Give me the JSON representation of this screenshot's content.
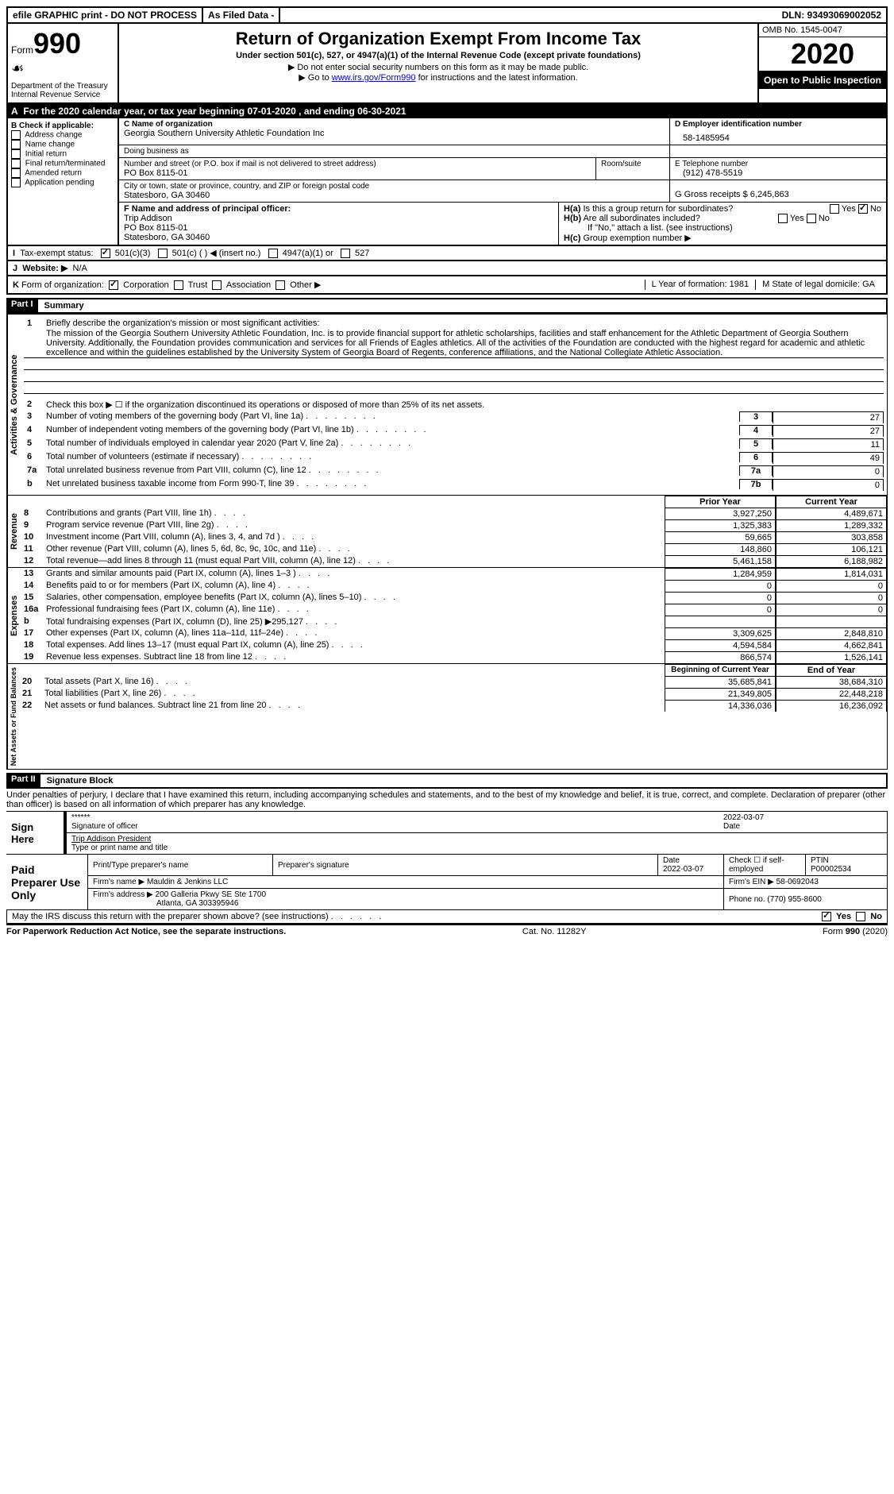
{
  "topbar": {
    "efile": "efile GRAPHIC print - DO NOT PROCESS",
    "asfiled": "As Filed Data -",
    "dln": "DLN: 93493069002052"
  },
  "header": {
    "form": "Form",
    "num": "990",
    "dept": "Department of the Treasury\nInternal Revenue Service",
    "title": "Return of Organization Exempt From Income Tax",
    "sub1": "Under section 501(c), 527, or 4947(a)(1) of the Internal Revenue Code (except private foundations)",
    "sub2": "▶ Do not enter social security numbers on this form as it may be made public.",
    "sub3a": "▶ Go to ",
    "sub3link": "www.irs.gov/Form990",
    "sub3b": " for instructions and the latest information.",
    "omb": "OMB No. 1545-0047",
    "year": "2020",
    "open": "Open to Public Inspection"
  },
  "A": {
    "text": "For the 2020 calendar year, or tax year beginning 07-01-2020   , and ending 06-30-2021"
  },
  "B": {
    "hdr": "B Check if applicable:",
    "items": [
      "Address change",
      "Name change",
      "Initial return",
      "Final return/terminated",
      "Amended return",
      "Application pending"
    ]
  },
  "C": {
    "label": "C Name of organization",
    "name": "Georgia Southern University Athletic Foundation Inc",
    "dba": "Doing business as",
    "street_label": "Number and street (or P.O. box if mail is not delivered to street address)",
    "room": "Room/suite",
    "street": "PO Box 8115-01",
    "city_label": "City or town, state or province, country, and ZIP or foreign postal code",
    "city": "Statesboro, GA  30460"
  },
  "D": {
    "label": "D Employer identification number",
    "val": "58-1485954"
  },
  "E": {
    "label": "E Telephone number",
    "val": "(912) 478-5519"
  },
  "G": {
    "label": "G Gross receipts $",
    "val": "6,245,863"
  },
  "F": {
    "label": "F  Name and address of principal officer:",
    "name": "Trip Addison",
    "po": "PO Box 8115-01",
    "city": "Statesboro, GA  30460"
  },
  "H": {
    "a": "Is this a group return for subordinates?",
    "b": "Are all subordinates included?",
    "b2": "If \"No,\" attach a list. (see instructions)",
    "c": "Group exemption number ▶",
    "yes": "Yes",
    "no": "No"
  },
  "I": {
    "label": "Tax-exempt status:",
    "opts": [
      "501(c)(3)",
      "501(c) (  ) ◀ (insert no.)",
      "4947(a)(1) or",
      "527"
    ]
  },
  "J": {
    "label": "Website: ▶",
    "val": "N/A"
  },
  "K": {
    "label": "Form of organization:",
    "opts": [
      "Corporation",
      "Trust",
      "Association",
      "Other ▶"
    ]
  },
  "L": {
    "label": "L Year of formation:",
    "val": "1981"
  },
  "M": {
    "label": "M State of legal domicile:",
    "val": "GA"
  },
  "part1": {
    "label": "Part I",
    "title": "Summary"
  },
  "summary": {
    "l1": "Briefly describe the organization's mission or most significant activities:",
    "mission": "The mission of the Georgia Southern University Athletic Foundation, Inc. is to provide financial support for athletic scholarships, facilities and staff enhancement for the Athletic Department of Georgia Southern University. Additionally, the Foundation provides communication and services for all Friends of Eagles athletics. All of the activities of the Foundation are conducted with the highest regard for academic and athletic excellence and within the guidelines established by the University System of Georgia Board of Regents, conference affiliations, and the National Collegiate Athletic Association.",
    "l2": "Check this box ▶ ☐ if the organization discontinued its operations or disposed of more than 25% of its net assets.",
    "rows": [
      {
        "n": "3",
        "t": "Number of voting members of the governing body (Part VI, line 1a)",
        "box": "3",
        "v": "27"
      },
      {
        "n": "4",
        "t": "Number of independent voting members of the governing body (Part VI, line 1b)",
        "box": "4",
        "v": "27"
      },
      {
        "n": "5",
        "t": "Total number of individuals employed in calendar year 2020 (Part V, line 2a)",
        "box": "5",
        "v": "11"
      },
      {
        "n": "6",
        "t": "Total number of volunteers (estimate if necessary)",
        "box": "6",
        "v": "49"
      },
      {
        "n": "7a",
        "t": "Total unrelated business revenue from Part VIII, column (C), line 12",
        "box": "7a",
        "v": "0"
      },
      {
        "n": "b",
        "t": "Net unrelated business taxable income from Form 990-T, line 39",
        "box": "7b",
        "v": "0"
      }
    ]
  },
  "cols": {
    "prior": "Prior Year",
    "current": "Current Year",
    "boy": "Beginning of Current Year",
    "eoy": "End of Year"
  },
  "revenue": [
    {
      "n": "8",
      "t": "Contributions and grants (Part VIII, line 1h)",
      "p": "3,927,250",
      "c": "4,489,671"
    },
    {
      "n": "9",
      "t": "Program service revenue (Part VIII, line 2g)",
      "p": "1,325,383",
      "c": "1,289,332"
    },
    {
      "n": "10",
      "t": "Investment income (Part VIII, column (A), lines 3, 4, and 7d )",
      "p": "59,665",
      "c": "303,858"
    },
    {
      "n": "11",
      "t": "Other revenue (Part VIII, column (A), lines 5, 6d, 8c, 9c, 10c, and 11e)",
      "p": "148,860",
      "c": "106,121"
    },
    {
      "n": "12",
      "t": "Total revenue—add lines 8 through 11 (must equal Part VIII, column (A), line 12)",
      "p": "5,461,158",
      "c": "6,188,982"
    }
  ],
  "expenses": [
    {
      "n": "13",
      "t": "Grants and similar amounts paid (Part IX, column (A), lines 1–3 )",
      "p": "1,284,959",
      "c": "1,814,031"
    },
    {
      "n": "14",
      "t": "Benefits paid to or for members (Part IX, column (A), line 4)",
      "p": "0",
      "c": "0"
    },
    {
      "n": "15",
      "t": "Salaries, other compensation, employee benefits (Part IX, column (A), lines 5–10)",
      "p": "0",
      "c": "0"
    },
    {
      "n": "16a",
      "t": "Professional fundraising fees (Part IX, column (A), line 11e)",
      "p": "0",
      "c": "0"
    },
    {
      "n": "b",
      "t": "Total fundraising expenses (Part IX, column (D), line 25) ▶295,127",
      "p": "",
      "c": ""
    },
    {
      "n": "17",
      "t": "Other expenses (Part IX, column (A), lines 11a–11d, 11f–24e)",
      "p": "3,309,625",
      "c": "2,848,810"
    },
    {
      "n": "18",
      "t": "Total expenses. Add lines 13–17 (must equal Part IX, column (A), line 25)",
      "p": "4,594,584",
      "c": "4,662,841"
    },
    {
      "n": "19",
      "t": "Revenue less expenses. Subtract line 18 from line 12",
      "p": "866,574",
      "c": "1,526,141"
    }
  ],
  "netassets": [
    {
      "n": "20",
      "t": "Total assets (Part X, line 16)",
      "p": "35,685,841",
      "c": "38,684,310"
    },
    {
      "n": "21",
      "t": "Total liabilities (Part X, line 26)",
      "p": "21,349,805",
      "c": "22,448,218"
    },
    {
      "n": "22",
      "t": "Net assets or fund balances. Subtract line 21 from line 20",
      "p": "14,336,036",
      "c": "16,236,092"
    }
  ],
  "labels": {
    "actgov": "Activities & Governance",
    "rev": "Revenue",
    "exp": "Expenses",
    "net": "Net Assets or Fund Balances"
  },
  "part2": {
    "label": "Part II",
    "title": "Signature Block",
    "perjury": "Under penalties of perjury, I declare that I have examined this return, including accompanying schedules and statements, and to the best of my knowledge and belief, it is true, correct, and complete. Declaration of preparer (other than officer) is based on all information of which preparer has any knowledge."
  },
  "sign": {
    "label": "Sign Here",
    "stars": "******",
    "sigoff": "Signature of officer",
    "date": "2022-03-07",
    "datel": "Date",
    "name": "Trip Addison  President",
    "namel": "Type or print name and title"
  },
  "paid": {
    "label": "Paid Preparer Use Only",
    "h1": "Print/Type preparer's name",
    "h2": "Preparer's signature",
    "h3": "Date",
    "h3v": "2022-03-07",
    "h4": "Check ☐ if self-employed",
    "h5": "PTIN",
    "ptin": "P00002534",
    "firm": "Firm's name   ▶",
    "firmv": "Mauldin & Jenkins LLC",
    "ein": "Firm's EIN ▶",
    "einv": "58-0692043",
    "addr": "Firm's address ▶",
    "addrv": "200 Galleria Pkwy SE Ste 1700",
    "addrv2": "Atlanta, GA  303395946",
    "phone": "Phone no.",
    "phonev": "(770) 955-8600"
  },
  "discuss": {
    "q": "May the IRS discuss this return with the preparer shown above? (see instructions)",
    "yes": "Yes",
    "no": "No"
  },
  "footer": {
    "pra": "For Paperwork Reduction Act Notice, see the separate instructions.",
    "cat": "Cat. No. 11282Y",
    "form": "Form 990 (2020)"
  }
}
